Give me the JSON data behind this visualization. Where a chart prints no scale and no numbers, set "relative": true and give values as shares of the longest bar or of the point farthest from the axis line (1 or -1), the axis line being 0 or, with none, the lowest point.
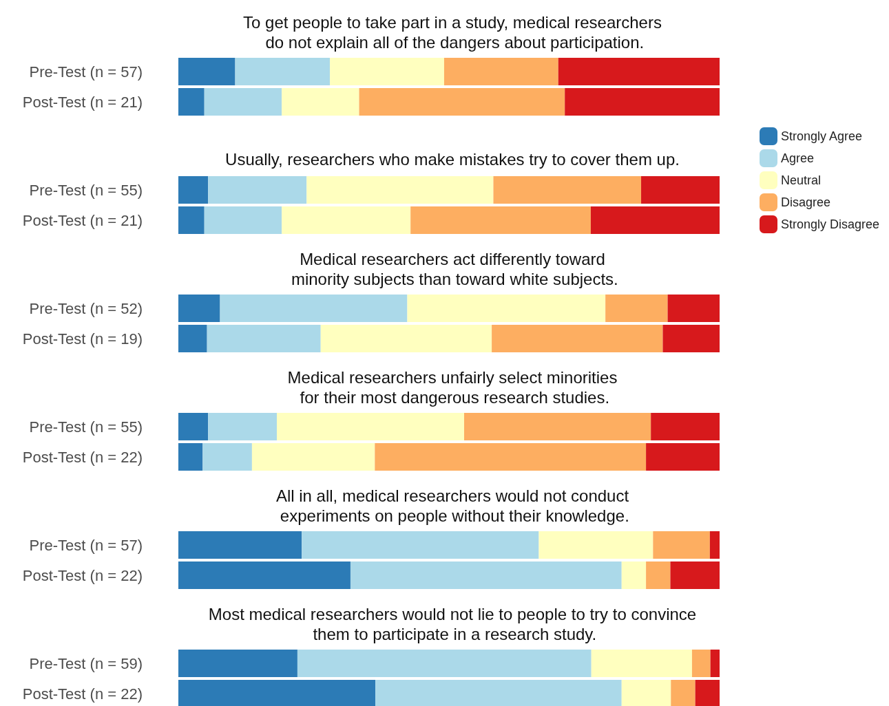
{
  "chart_data": [
    {
      "type": "bar",
      "orientation": "horizontal",
      "stacked": true,
      "relative": true,
      "title": "To get people to take part in a study, medical researchers\n do not explain all of the dangers about participation.",
      "categories": [
        "Pre-Test (n = 57)",
        "Post-Test (n = 21)"
      ],
      "series": [
        {
          "color": "#2c7bb6",
          "values": [
            0.105,
            0.048
          ]
        },
        {
          "color": "#abd9e9",
          "values": [
            0.175,
            0.143
          ]
        },
        {
          "color": "#ffffbf",
          "values": [
            0.211,
            0.143
          ]
        },
        {
          "color": "#fdae61",
          "values": [
            0.211,
            0.38
          ]
        },
        {
          "color": "#d7191c",
          "values": [
            0.298,
            0.286
          ]
        }
      ]
    },
    {
      "type": "bar",
      "orientation": "horizontal",
      "stacked": true,
      "relative": true,
      "legend": "right",
      "title": "Usually, researchers who make mistakes try to cover them up.",
      "categories": [
        "Pre-Test (n = 55)",
        "Post-Test (n = 21)"
      ],
      "series": [
        {
          "name": "Strongly Agree",
          "color": "#2c7bb6",
          "values": [
            0.055,
            0.048
          ]
        },
        {
          "name": "Agree",
          "color": "#abd9e9",
          "values": [
            0.182,
            0.143
          ]
        },
        {
          "name": "Neutral",
          "color": "#ffffbf",
          "values": [
            0.345,
            0.238
          ]
        },
        {
          "name": "Disagree",
          "color": "#fdae61",
          "values": [
            0.273,
            0.333
          ]
        },
        {
          "name": "Strongly Disagree",
          "color": "#d7191c",
          "values": [
            0.145,
            0.238
          ]
        }
      ]
    },
    {
      "type": "bar",
      "orientation": "horizontal",
      "stacked": true,
      "relative": true,
      "title": "Medical researchers act differently toward\n minority subjects than toward white subjects.",
      "categories": [
        "Pre-Test (n = 52)",
        "Post-Test (n = 19)"
      ],
      "series": [
        {
          "color": "#2c7bb6",
          "values": [
            0.077,
            0.053
          ]
        },
        {
          "color": "#abd9e9",
          "values": [
            0.346,
            0.21
          ]
        },
        {
          "color": "#ffffbf",
          "values": [
            0.366,
            0.316
          ]
        },
        {
          "color": "#fdae61",
          "values": [
            0.115,
            0.316
          ]
        },
        {
          "color": "#d7191c",
          "values": [
            0.096,
            0.105
          ]
        }
      ]
    },
    {
      "type": "bar",
      "orientation": "horizontal",
      "stacked": true,
      "relative": true,
      "title": "Medical researchers unfairly select minorities\n for their most dangerous research studies.",
      "categories": [
        "Pre-Test (n = 55)",
        "Post-Test (n = 22)"
      ],
      "series": [
        {
          "color": "#2c7bb6",
          "values": [
            0.055,
            0.045
          ]
        },
        {
          "color": "#abd9e9",
          "values": [
            0.127,
            0.091
          ]
        },
        {
          "color": "#ffffbf",
          "values": [
            0.346,
            0.227
          ]
        },
        {
          "color": "#fdae61",
          "values": [
            0.345,
            0.501
          ]
        },
        {
          "color": "#d7191c",
          "values": [
            0.127,
            0.136
          ]
        }
      ]
    },
    {
      "type": "bar",
      "orientation": "horizontal",
      "stacked": true,
      "relative": true,
      "title": "All in all, medical researchers would not conduct\n experiments on people without their knowledge.",
      "categories": [
        "Pre-Test (n = 57)",
        "Post-Test (n = 22)"
      ],
      "series": [
        {
          "color": "#2c7bb6",
          "values": [
            0.228,
            0.318
          ]
        },
        {
          "color": "#abd9e9",
          "values": [
            0.438,
            0.501
          ]
        },
        {
          "color": "#ffffbf",
          "values": [
            0.211,
            0.045
          ]
        },
        {
          "color": "#fdae61",
          "values": [
            0.105,
            0.045
          ]
        },
        {
          "color": "#d7191c",
          "values": [
            0.018,
            0.091
          ]
        }
      ]
    },
    {
      "type": "bar",
      "orientation": "horizontal",
      "stacked": true,
      "relative": true,
      "title": "Most medical researchers would not lie to people to try to convince\n them to participate in a research study.",
      "categories": [
        "Pre-Test (n = 59)",
        "Post-Test (n = 22)"
      ],
      "series": [
        {
          "color": "#2c7bb6",
          "values": [
            0.22,
            0.364
          ]
        },
        {
          "color": "#abd9e9",
          "values": [
            0.543,
            0.455
          ]
        },
        {
          "color": "#ffffbf",
          "values": [
            0.186,
            0.091
          ]
        },
        {
          "color": "#fdae61",
          "values": [
            0.034,
            0.045
          ]
        },
        {
          "color": "#d7191c",
          "values": [
            0.017,
            0.045
          ]
        }
      ]
    }
  ]
}
